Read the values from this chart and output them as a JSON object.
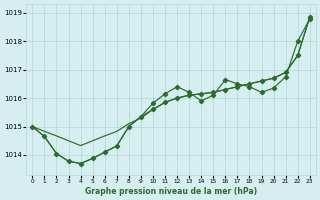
{
  "xlabel": "Graphe pression niveau de la mer (hPa)",
  "xlim": [
    -0.5,
    23.5
  ],
  "ylim": [
    1013.3,
    1019.3
  ],
  "yticks": [
    1014,
    1015,
    1016,
    1017,
    1018,
    1019
  ],
  "xticks": [
    0,
    1,
    2,
    3,
    4,
    5,
    6,
    7,
    8,
    9,
    10,
    11,
    12,
    13,
    14,
    15,
    16,
    17,
    18,
    19,
    20,
    21,
    22,
    23
  ],
  "bg_color": "#d6eef0",
  "grid_color": "#b0d8d8",
  "line_color": "#2d6a2d",
  "line_smooth": [
    1015.0,
    1014.83,
    1014.67,
    1014.5,
    1014.33,
    1014.5,
    1014.67,
    1014.83,
    1015.1,
    1015.3,
    1015.6,
    1015.85,
    1016.0,
    1016.1,
    1016.15,
    1016.2,
    1016.3,
    1016.4,
    1016.5,
    1016.6,
    1016.7,
    1016.9,
    1017.5,
    1018.85
  ],
  "line_jagged": [
    1015.0,
    1014.65,
    1014.05,
    1013.78,
    1013.7,
    1013.88,
    1014.1,
    1014.32,
    1015.0,
    1015.35,
    1015.82,
    1016.15,
    1016.4,
    1016.2,
    1015.9,
    1016.1,
    1016.65,
    1016.5,
    1016.4,
    1016.2,
    1016.35,
    1016.75,
    1018.0,
    1018.78
  ],
  "line_mid": [
    1015.0,
    1014.65,
    1014.05,
    1013.78,
    1013.7,
    1013.88,
    1014.1,
    1014.32,
    1015.0,
    1015.35,
    1015.6,
    1015.85,
    1016.0,
    1016.1,
    1016.15,
    1016.2,
    1016.3,
    1016.4,
    1016.5,
    1016.6,
    1016.7,
    1016.9,
    1017.5,
    1018.85
  ],
  "jagged_marker_x": [
    0,
    1,
    2,
    3,
    4,
    5,
    6,
    7,
    8,
    9,
    10,
    11,
    12,
    13,
    14,
    15,
    16,
    17,
    18,
    19,
    20,
    21,
    22,
    23
  ],
  "mid_marker_x": [
    10,
    11,
    12,
    13,
    14,
    15,
    16,
    17,
    18,
    19,
    20,
    21,
    22,
    23
  ]
}
